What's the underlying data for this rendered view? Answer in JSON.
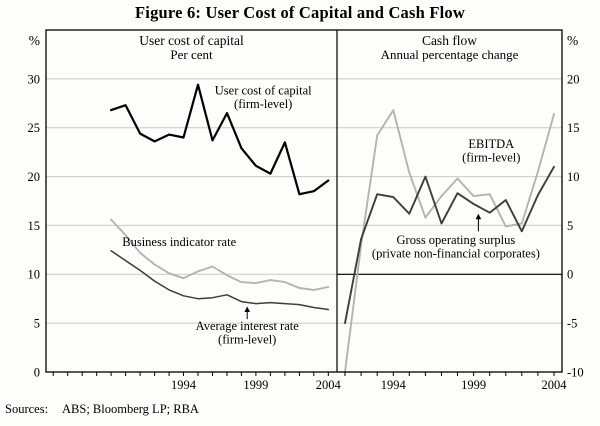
{
  "page": {
    "title": "Figure 6: User Cost of Capital and Cash Flow",
    "sources_label": "Sources:",
    "sources": "ABS; Bloomberg LP; RBA"
  },
  "colors": {
    "black_line": "#000000",
    "dark_gray_line": "#3d3d3d",
    "light_gray_line": "#b3b3b3",
    "gridline": "#c9c9c9"
  },
  "chart_data": [
    {
      "type": "line",
      "panel": "left",
      "panel_title": "User cost of capital",
      "panel_subtitle": "Per cent",
      "unit": "%",
      "axis_side": "left",
      "xlim": [
        1984.5,
        2004.6
      ],
      "ylim": [
        0,
        35
      ],
      "yticks": [
        0,
        5,
        10,
        15,
        20,
        25,
        30
      ],
      "xticks": [
        1994,
        1999,
        2004
      ],
      "grid": true,
      "x": [
        1989,
        1990,
        1991,
        1992,
        1993,
        1994,
        1995,
        1996,
        1997,
        1998,
        1999,
        2000,
        2001,
        2002,
        2003,
        2004
      ],
      "series": [
        {
          "name": "User cost of capital (firm-level)",
          "color": "#000000",
          "width": 2.2,
          "values": [
            26.8,
            27.3,
            24.4,
            23.6,
            24.3,
            24.0,
            29.4,
            23.7,
            26.5,
            22.9,
            21.1,
            20.3,
            23.5,
            18.2,
            18.5,
            19.6
          ]
        },
        {
          "name": "Business indicator rate",
          "color": "#b3b3b3",
          "width": 1.9,
          "values": [
            15.6,
            14.0,
            12.2,
            11.0,
            10.1,
            9.6,
            10.3,
            10.8,
            9.9,
            9.2,
            9.1,
            9.4,
            9.2,
            8.6,
            8.4,
            8.7
          ]
        },
        {
          "name": "Average interest rate (firm-level)",
          "color": "#3d3d3d",
          "width": 1.5,
          "values": [
            12.4,
            11.4,
            10.4,
            9.3,
            8.4,
            7.8,
            7.5,
            7.6,
            7.9,
            7.2,
            7.0,
            7.1,
            7.0,
            6.9,
            6.6,
            6.4
          ]
        }
      ],
      "annotations": [
        {
          "lines": [
            "User cost of capital",
            "(firm-level)"
          ],
          "x": 1999.5,
          "y": 28.4
        },
        {
          "lines": [
            "Business indicator rate"
          ],
          "x": 1993.7,
          "y": 12.9
        },
        {
          "lines": [
            "Average interest rate",
            "(firm-level)"
          ],
          "x": 1998.4,
          "y": 4.3,
          "arrow": {
            "x": 1998.4,
            "from": 5.4,
            "to": 6.7
          }
        }
      ]
    },
    {
      "type": "line",
      "panel": "right",
      "panel_title": "Cash flow",
      "panel_subtitle": "Annual percentage change",
      "unit": "%",
      "axis_side": "right",
      "xlim": [
        1990.5,
        2004.5
      ],
      "ylim": [
        -10,
        25
      ],
      "yticks": [
        -10,
        -5,
        0,
        5,
        10,
        15,
        20
      ],
      "xticks": [
        1994,
        1999,
        2004
      ],
      "grid": true,
      "zero_line": true,
      "x": [
        1991,
        1992,
        1993,
        1994,
        1995,
        1996,
        1997,
        1998,
        1999,
        2000,
        2001,
        2002,
        2003,
        2004
      ],
      "series": [
        {
          "name": "EBITDA (firm-level)",
          "color": "#b3b3b3",
          "width": 1.9,
          "values": [
            -10.0,
            3.0,
            14.2,
            16.8,
            10.4,
            5.8,
            8.0,
            9.8,
            8.0,
            8.2,
            4.9,
            5.2,
            10.5,
            16.4
          ]
        },
        {
          "name": "Gross operating surplus (private non-financial corporates)",
          "color": "#3d3d3d",
          "width": 1.9,
          "values": [
            -5.0,
            3.6,
            8.2,
            7.9,
            6.2,
            10.0,
            5.2,
            8.3,
            7.2,
            6.3,
            7.6,
            4.4,
            8.1,
            11.0
          ]
        }
      ],
      "annotations": [
        {
          "lines": [
            "EBITDA",
            "(firm-level)"
          ],
          "x": 2000.1,
          "y": 12.9
        },
        {
          "lines": [
            "Gross operating surplus",
            "(private non-financial corporates)"
          ],
          "x": 1997.9,
          "y": 3.1,
          "arrow": {
            "x": 1999.3,
            "from": 4.4,
            "to": 6.2
          }
        }
      ]
    }
  ]
}
